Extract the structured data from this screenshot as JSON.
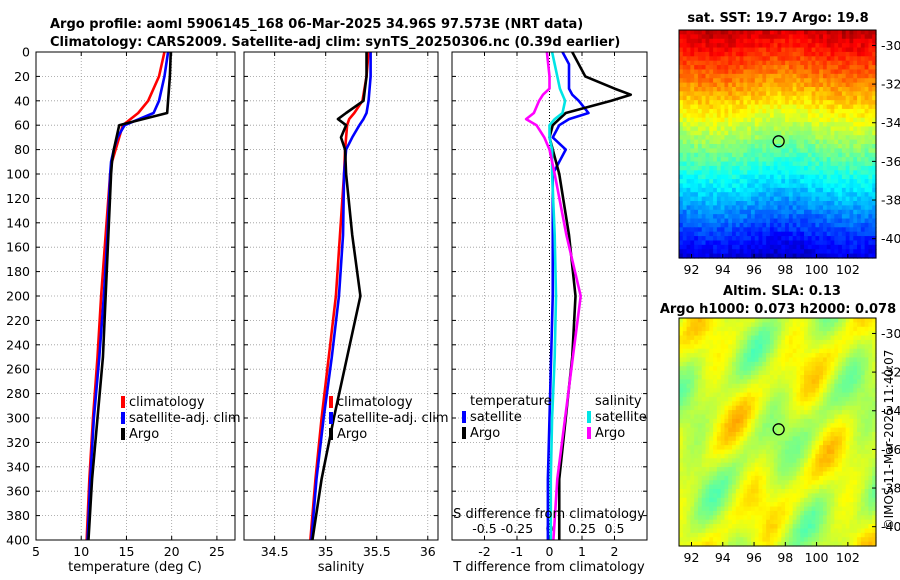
{
  "title": {
    "line1": "Argo profile: aoml 5906145_168 06-Mar-2025 34.96S 97.573E (NRT data)",
    "line2": "Climatology: CARS2009. Satellite-adj clim: synTS_20250306.nc (0.39d earlier)"
  },
  "colors": {
    "climatology": "#ff0000",
    "satellite": "#0000ff",
    "argo": "#000000",
    "sat_salinity": "#00e5e5",
    "argo_salinity": "#ff00ff"
  },
  "maps": {
    "sst": {
      "title": "sat. SST: 19.7 Argo: 19.8",
      "xticks": [
        "92",
        "94",
        "96",
        "98",
        "100",
        "102"
      ],
      "yticks": [
        "-30",
        "-32",
        "-34",
        "-36",
        "-38",
        "-40"
      ],
      "argo_lon": 97.573,
      "argo_lat": -34.96
    },
    "sla": {
      "title1": "Altim. SLA: 0.13",
      "title2": "Argo h1000: 0.073 h2000: 0.078",
      "xticks": [
        "92",
        "94",
        "96",
        "98",
        "100",
        "102"
      ],
      "yticks": [
        "-30",
        "-32",
        "-34",
        "-36",
        "-38",
        "-40"
      ],
      "argo_lon": 97.573,
      "argo_lat": -34.96
    }
  },
  "credit": "©IMOS 11-Mar-2025 11:40:07",
  "depth_ticks": [
    "0",
    "20",
    "40",
    "60",
    "80",
    "100",
    "120",
    "140",
    "160",
    "180",
    "200",
    "220",
    "240",
    "260",
    "280",
    "300",
    "320",
    "340",
    "360",
    "380",
    "400"
  ],
  "chart_data": [
    {
      "type": "line",
      "name": "temperature",
      "xlabel": "temperature (deg C)",
      "ylabel": "",
      "xlim": [
        5,
        27
      ],
      "ylim": [
        400,
        0
      ],
      "xticks": [
        "5",
        "10",
        "15",
        "20",
        "25"
      ],
      "legend": [
        "climatology",
        "satellite-adj. clim",
        "Argo"
      ],
      "legend_position": "bottom-right",
      "depth": [
        0,
        20,
        40,
        50,
        60,
        70,
        80,
        90,
        100,
        150,
        200,
        250,
        300,
        350,
        400
      ],
      "series": [
        {
          "name": "climatology",
          "values": [
            19.2,
            18.6,
            17.4,
            16.3,
            14.6,
            14.2,
            13.8,
            13.4,
            13.2,
            12.7,
            12.2,
            11.8,
            11.3,
            10.9,
            10.6
          ]
        },
        {
          "name": "satellite-adj. clim",
          "values": [
            19.6,
            19.2,
            18.6,
            18.0,
            14.8,
            14.0,
            13.6,
            13.3,
            13.2,
            12.9,
            12.5,
            12.0,
            11.4,
            11.0,
            10.7
          ]
        },
        {
          "name": "Argo",
          "values": [
            19.9,
            19.8,
            19.6,
            19.5,
            14.2,
            13.9,
            13.6,
            13.4,
            13.3,
            13.0,
            12.7,
            12.4,
            11.8,
            11.2,
            10.8
          ]
        }
      ]
    },
    {
      "type": "line",
      "name": "salinity",
      "xlabel": "salinity",
      "ylabel": "",
      "xlim": [
        34.2,
        36.1
      ],
      "ylim": [
        400,
        0
      ],
      "xticks": [
        "34.5",
        "35",
        "35.5",
        "36"
      ],
      "legend": [
        "climatology",
        "satellite-adj. clim",
        "Argo"
      ],
      "legend_position": "bottom-right",
      "depth": [
        0,
        20,
        40,
        50,
        55,
        60,
        70,
        80,
        100,
        150,
        200,
        250,
        300,
        350,
        400
      ],
      "series": [
        {
          "name": "climatology",
          "values": [
            35.42,
            35.4,
            35.36,
            35.28,
            35.23,
            35.21,
            35.2,
            35.19,
            35.18,
            35.14,
            35.1,
            35.03,
            34.96,
            34.9,
            34.85
          ]
        },
        {
          "name": "satellite-adj. clim",
          "values": [
            35.44,
            35.44,
            35.42,
            35.4,
            35.37,
            35.33,
            35.26,
            35.2,
            35.18,
            35.17,
            35.13,
            35.06,
            34.98,
            34.91,
            34.86
          ]
        },
        {
          "name": "Argo",
          "values": [
            35.4,
            35.4,
            35.37,
            35.2,
            35.12,
            35.2,
            35.15,
            35.19,
            35.2,
            35.26,
            35.34,
            35.21,
            35.08,
            34.96,
            34.87
          ]
        }
      ]
    },
    {
      "type": "line",
      "name": "differences",
      "xlabel": "T difference from climatology",
      "xlabel2": "S difference from climatology",
      "xlim": [
        -3,
        3
      ],
      "ylim": [
        400,
        0
      ],
      "xticks": [
        "-2",
        "-1",
        "0",
        "1",
        "2"
      ],
      "xticks_salinity": [
        "-0.5",
        "-0.25",
        "0",
        "0.25",
        "0.5"
      ],
      "legend_temperature": {
        "title": "temperature",
        "items": [
          "satellite",
          "Argo"
        ]
      },
      "legend_salinity": {
        "title": "salinity",
        "items": [
          "satellite",
          "Argo"
        ]
      },
      "depth": [
        0,
        10,
        20,
        30,
        35,
        40,
        50,
        55,
        60,
        70,
        80,
        90,
        100,
        150,
        200,
        250,
        300,
        350,
        400
      ],
      "series": [
        {
          "name": "temperature satellite",
          "values": [
            0.4,
            0.6,
            0.6,
            0.6,
            0.7,
            0.9,
            1.2,
            0.6,
            0.3,
            0.1,
            0.5,
            0.3,
            0.1,
            0.1,
            0.1,
            0.05,
            0.0,
            -0.05,
            -0.05
          ]
        },
        {
          "name": "temperature Argo",
          "values": [
            0.7,
            0.9,
            1.1,
            2.0,
            2.5,
            1.9,
            0.5,
            0.3,
            0.1,
            0.0,
            0.1,
            0.2,
            0.3,
            0.6,
            0.8,
            0.7,
            0.5,
            0.3,
            0.3
          ]
        },
        {
          "name": "salinity satellite",
          "values": [
            0.02,
            0.04,
            0.06,
            0.08,
            0.1,
            0.12,
            0.1,
            0.04,
            0.0,
            0.0,
            0.02,
            0.02,
            0.02,
            0.04,
            0.05,
            0.04,
            0.02,
            0.01,
            0.01
          ]
        },
        {
          "name": "salinity Argo",
          "values": [
            -0.02,
            -0.01,
            0.0,
            0.0,
            -0.05,
            -0.08,
            -0.12,
            -0.18,
            -0.1,
            -0.04,
            0.0,
            0.02,
            0.04,
            0.13,
            0.24,
            0.18,
            0.12,
            0.06,
            0.03
          ]
        }
      ]
    }
  ]
}
